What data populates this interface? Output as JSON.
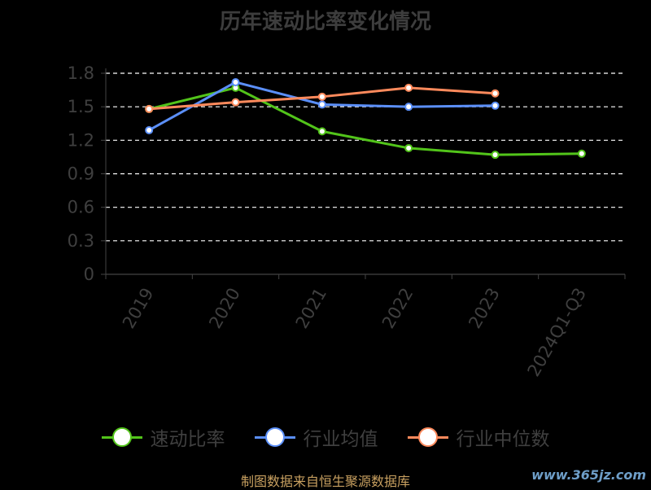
{
  "chart_data": {
    "type": "line",
    "title": "历年速动比率变化情况",
    "categories": [
      "2019",
      "2020",
      "2021",
      "2022",
      "2023",
      "2024Q1-Q3"
    ],
    "y_ticks": [
      "0",
      "0.3",
      "0.6",
      "0.9",
      "1.2",
      "1.5",
      "1.8"
    ],
    "ylim": [
      0,
      1.8
    ],
    "grid": true,
    "legend_position": "bottom",
    "series": [
      {
        "name": "速动比率",
        "color": "#52c41a",
        "values": [
          1.48,
          1.67,
          1.28,
          1.13,
          1.07,
          1.08
        ]
      },
      {
        "name": "行业均值",
        "color": "#5b8ff9",
        "values": [
          1.29,
          1.72,
          1.52,
          1.5,
          1.51,
          null
        ]
      },
      {
        "name": "行业中位数",
        "color": "#ff8a5c",
        "values": [
          1.48,
          1.54,
          1.59,
          1.67,
          1.62,
          null
        ]
      }
    ]
  },
  "source": "制图数据来自恒生聚源数据库",
  "watermark": "www.365jz.com"
}
